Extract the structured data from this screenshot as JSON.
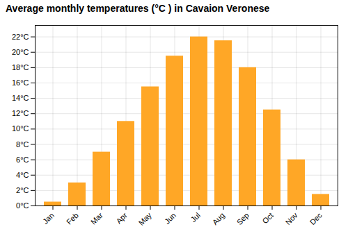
{
  "chart_data": {
    "type": "bar",
    "title": "Average monthly temperatures (°C ) in Cavaion Veronese",
    "categories": [
      "Jan",
      "Feb",
      "Mar",
      "Apr",
      "May",
      "Jun",
      "Jul",
      "Aug",
      "Sep",
      "Oct",
      "Nov",
      "Dec"
    ],
    "values": [
      0.5,
      3.0,
      7.0,
      11.0,
      15.5,
      19.5,
      22.0,
      21.5,
      18.0,
      12.5,
      6.0,
      1.5
    ],
    "color": "#FFA726",
    "ylim": [
      0,
      23.5
    ],
    "yticks": [
      {
        "value": 0,
        "label": "0°C"
      },
      {
        "value": 2,
        "label": "2°C"
      },
      {
        "value": 4,
        "label": "4°C"
      },
      {
        "value": 6,
        "label": "6°C"
      },
      {
        "value": 8,
        "label": "8°C"
      },
      {
        "value": 10,
        "label": "10°C"
      },
      {
        "value": 12,
        "label": "12°C"
      },
      {
        "value": 14,
        "label": "14°C"
      },
      {
        "value": 16,
        "label": "16°C"
      },
      {
        "value": 18,
        "label": "18°C"
      },
      {
        "value": 20,
        "label": "20°C"
      },
      {
        "value": 22,
        "label": "22°C"
      }
    ],
    "grid": true
  }
}
